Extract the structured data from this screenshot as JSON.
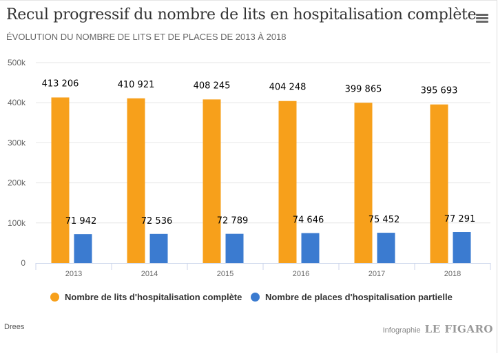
{
  "header": {
    "title": "Recul progressif du nombre de lits en hospitalisation complète",
    "subtitle": "ÉVOLUTION DU NOMBRE DE LITS ET DE PLACES DE 2013 À 2018",
    "menu_icon": "hamburger-menu-icon"
  },
  "footer": {
    "source": "Drees",
    "credit_label": "Infographie",
    "brand": "LE FIGARO"
  },
  "chart_data": {
    "type": "bar",
    "title": "Recul progressif du nombre de lits en hospitalisation complète",
    "subtitle": "ÉVOLUTION DU NOMBRE DE LITS ET DE PLACES DE 2013 À 2018",
    "xlabel": "",
    "ylabel": "",
    "categories": [
      "2013",
      "2014",
      "2015",
      "2016",
      "2017",
      "2018"
    ],
    "series": [
      {
        "name": "Nombre de lits d'hospitalisation complète",
        "color": "#f7a01b",
        "values": [
          413206,
          410921,
          408245,
          404248,
          399865,
          395693
        ],
        "labels": [
          "413 206",
          "410 921",
          "408 245",
          "404 248",
          "399 865",
          "395 693"
        ]
      },
      {
        "name": "Nombre de places d'hospitalisation partielle",
        "color": "#3b7bd0",
        "values": [
          71942,
          72536,
          72789,
          74646,
          75452,
          77291
        ],
        "labels": [
          "71 942",
          "72 536",
          "72 789",
          "74 646",
          "75 452",
          "77 291"
        ]
      }
    ],
    "ylim": [
      0,
      500000
    ],
    "yticks": [
      0,
      100000,
      200000,
      300000,
      400000,
      500000
    ],
    "ytick_labels": [
      "0",
      "100k",
      "200k",
      "300k",
      "400k",
      "500k"
    ],
    "grid": true,
    "legend": "bottom-center"
  }
}
